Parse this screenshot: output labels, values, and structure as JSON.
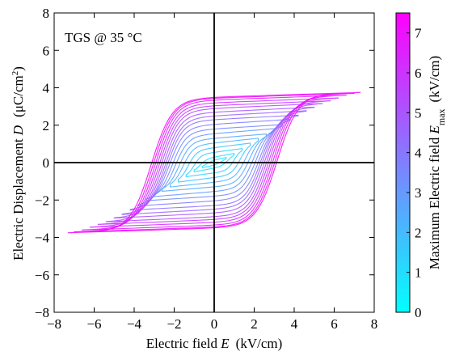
{
  "chart_data": {
    "type": "line",
    "title": "",
    "annotation": "TGS @ 35 °C",
    "xlabel": "Electric field E (kV/cm)",
    "xlabel_parts": {
      "prefix": "Electric field ",
      "symbol": "E",
      "unit": "(kV/cm)"
    },
    "ylabel": "Electric Displacement D (μC/cm²)",
    "ylabel_parts": {
      "prefix": "Electric Displacement ",
      "symbol": "D",
      "unit": "(μC/cm",
      "sup": "2",
      "close": ")"
    },
    "xlim": [
      -8,
      8
    ],
    "ylim": [
      -8,
      8
    ],
    "xticks": [
      -8,
      -6,
      -4,
      -2,
      0,
      2,
      4,
      6,
      8
    ],
    "yticks": [
      -8,
      -6,
      -4,
      -2,
      0,
      2,
      4,
      6,
      8
    ],
    "x_tick_labels": [
      "−8",
      "−6",
      "−4",
      "−2",
      "0",
      "2",
      "4",
      "6",
      "8"
    ],
    "y_tick_labels": [
      "−8",
      "−6",
      "−4",
      "−2",
      "0",
      "2",
      "4",
      "6",
      "8"
    ],
    "zero_lines": true,
    "colormap": {
      "name": "cool",
      "start": "#00ffff",
      "end": "#ff00ff"
    },
    "colorbar": {
      "label": "Maximum Electric field E_max (kV/cm)",
      "label_parts": {
        "prefix": "Maximum Electric field ",
        "symbol": "E",
        "sub": "max",
        "unit": "(kV/cm)"
      },
      "range": [
        0,
        7.5
      ],
      "ticks": [
        0,
        1,
        2,
        3,
        4,
        5,
        6,
        7
      ],
      "tick_labels": [
        "0",
        "1",
        "2",
        "3",
        "4",
        "5",
        "6",
        "7"
      ]
    },
    "series": [
      {
        "name": "E_max 0.6",
        "emax": 0.6,
        "ec": 0.4,
        "ps": 0.15,
        "sat": 0.2
      },
      {
        "name": "E_max 1.0",
        "emax": 1.0,
        "ec": 0.7,
        "ps": 0.3,
        "sat": 0.4
      },
      {
        "name": "E_max 1.4",
        "emax": 1.4,
        "ec": 1.0,
        "ps": 0.55,
        "sat": 0.65
      },
      {
        "name": "E_max 1.8",
        "emax": 1.8,
        "ec": 1.3,
        "ps": 0.8,
        "sat": 0.9
      },
      {
        "name": "E_max 2.2",
        "emax": 2.2,
        "ec": 1.55,
        "ps": 1.05,
        "sat": 1.15
      },
      {
        "name": "E_max 2.6",
        "emax": 2.6,
        "ec": 1.75,
        "ps": 1.3,
        "sat": 1.4
      },
      {
        "name": "E_max 3.0",
        "emax": 3.0,
        "ec": 1.95,
        "ps": 1.55,
        "sat": 1.7
      },
      {
        "name": "E_max 3.4",
        "emax": 3.4,
        "ec": 2.1,
        "ps": 1.8,
        "sat": 1.95
      },
      {
        "name": "E_max 3.8",
        "emax": 3.8,
        "ec": 2.25,
        "ps": 2.05,
        "sat": 2.25
      },
      {
        "name": "E_max 4.2",
        "emax": 4.2,
        "ec": 2.35,
        "ps": 2.3,
        "sat": 2.5
      },
      {
        "name": "E_max 4.6",
        "emax": 4.6,
        "ec": 2.45,
        "ps": 2.5,
        "sat": 2.75
      },
      {
        "name": "E_max 5.0",
        "emax": 5.0,
        "ec": 2.55,
        "ps": 2.7,
        "sat": 2.95
      },
      {
        "name": "E_max 5.4",
        "emax": 5.4,
        "ec": 2.65,
        "ps": 2.9,
        "sat": 3.15
      },
      {
        "name": "E_max 5.8",
        "emax": 5.8,
        "ec": 2.75,
        "ps": 3.05,
        "sat": 3.3
      },
      {
        "name": "E_max 6.2",
        "emax": 6.2,
        "ec": 2.85,
        "ps": 3.2,
        "sat": 3.45
      },
      {
        "name": "E_max 6.6",
        "emax": 6.6,
        "ec": 2.95,
        "ps": 3.35,
        "sat": 3.6
      },
      {
        "name": "E_max 7.0",
        "emax": 7.0,
        "ec": 3.05,
        "ps": 3.45,
        "sat": 3.7
      },
      {
        "name": "E_max 7.3",
        "emax": 7.3,
        "ec": 3.15,
        "ps": 3.5,
        "sat": 3.75
      }
    ]
  }
}
